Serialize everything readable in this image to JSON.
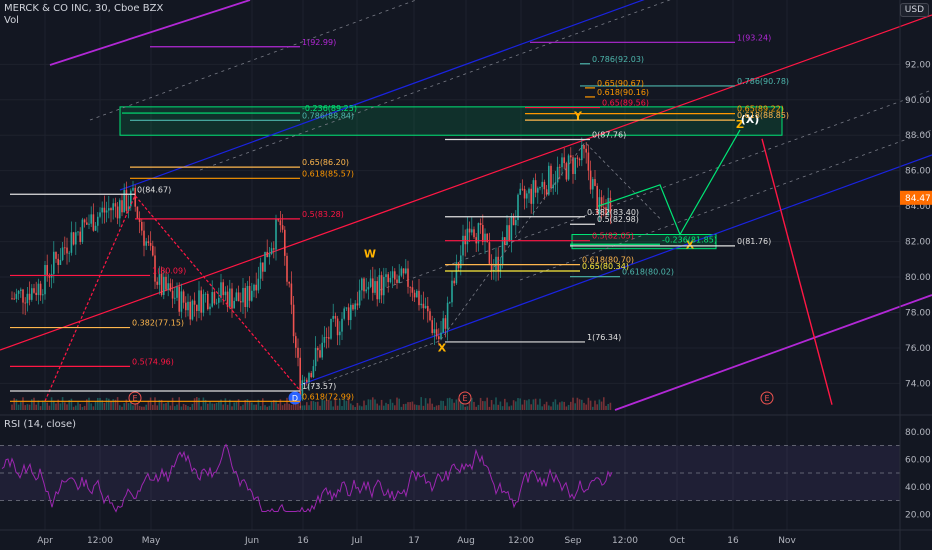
{
  "header": {
    "symbol_line": "MERCK & CO INC, 30, Cboe BZX",
    "volume_label": "Vol",
    "currency": "USD"
  },
  "rsi": {
    "label": "RSI (14, close)",
    "ticks": [
      "80.00",
      "60.00",
      "40.00",
      "20.00"
    ],
    "upper": 70,
    "lower": 30
  },
  "colors": {
    "background": "#131722",
    "grid": "#1e222d",
    "candle_up": "#26a69a",
    "candle_down": "#ef5350",
    "rsi_line": "#9c27b0",
    "channel_red": "#ff1744",
    "channel_blue": "#1a23e0",
    "channel_purple": "#b228d6",
    "box_green": "#00e676",
    "current_price_badge": "#ff6d00"
  },
  "chart_data": {
    "type": "candlestick",
    "ylim": [
      72.5,
      94.5
    ],
    "y_ticks": [
      "92.00",
      "90.00",
      "88.00",
      "86.00",
      "84.00",
      "82.00",
      "80.00",
      "78.00",
      "76.00",
      "74.00"
    ],
    "x_ticks": [
      "Apr",
      "12:00",
      "May",
      "Jun",
      "16",
      "Jul",
      "17",
      "Aug",
      "12:00",
      "Sep",
      "12:00",
      "Oct",
      "16",
      "Nov"
    ],
    "last_price": "84.47",
    "wave_labels": [
      "W",
      "X",
      "Y",
      "X",
      "Z",
      "(X)"
    ],
    "event_markers": [
      "E",
      "D",
      "E",
      "E"
    ],
    "fib_labels": [
      "1(92.99)",
      "1(93.24)",
      "0.786(92.03)",
      "0.786(90.78)",
      "0.65(90.67)",
      "0.618(90.16)",
      "-0.236(89.25)",
      "0.786(88.84)",
      "0.65(89.22)",
      "0.618(88.85)",
      "0.65(89.56)",
      "0(87.76)",
      "0.65(86.20)",
      "0.618(85.57)",
      "0(84.67)",
      "0.5(83.28)",
      "0.382(83.40)",
      "0.5(82.98)",
      "0.5(82.05)",
      "-0.236(81.85)",
      "0(81.76)",
      "0.618(80.70)",
      "0.65(80.34)",
      "0.618(80.02)",
      "1(80.09)",
      "0.382(77.15)",
      "1(76.34)",
      "0.5(74.96)",
      "1(73.57)",
      "0.618(72.99)"
    ]
  }
}
